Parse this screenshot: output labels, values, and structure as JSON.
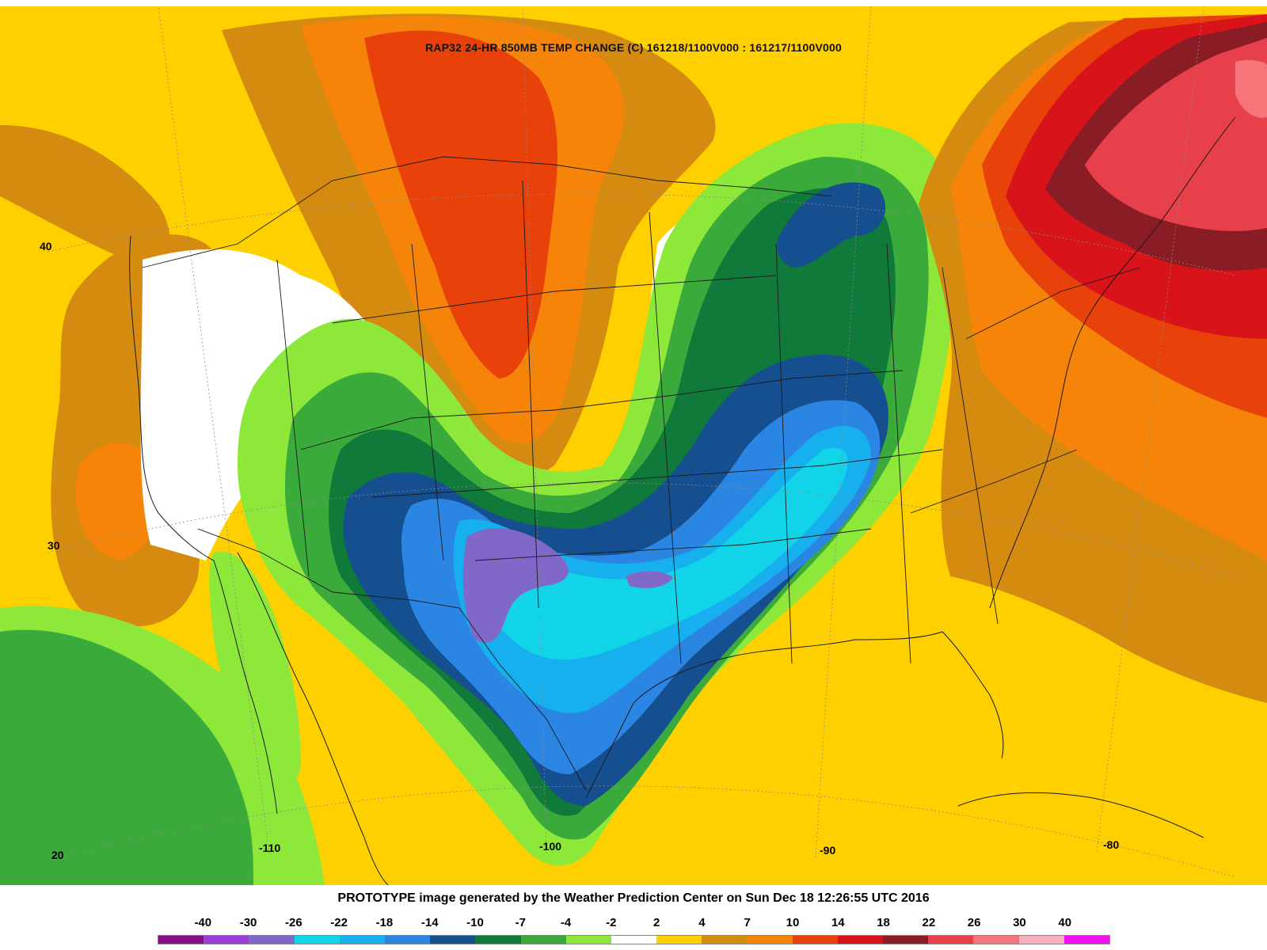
{
  "map": {
    "title": "RAP32 24-HR 850MB TEMP CHANGE (C) 161218/1100V000 : 161217/1100V000",
    "latitude_labels": [
      "40",
      "30",
      "20"
    ],
    "longitude_labels": [
      "-110",
      "-100",
      "-90",
      "-80"
    ],
    "footer": "PROTOTYPE image generated by the Weather Prediction Center on Sun Dec 18 12:26:55 UTC 2016",
    "legend": {
      "labels": [
        "-40",
        "-30",
        "-26",
        "-22",
        "-18",
        "-14",
        "-10",
        "-7",
        "-4",
        "-2",
        "2",
        "4",
        "7",
        "10",
        "14",
        "18",
        "22",
        "26",
        "30",
        "40"
      ],
      "colors": [
        "#8a0d8a",
        "#9a3ddb",
        "#8068c9",
        "#12d4e8",
        "#16b0ee",
        "#2a86e2",
        "#164f90",
        "#0f7a3a",
        "#3aaa3a",
        "#8de83a",
        "#ffffff",
        "#ffd000",
        "#d58a10",
        "#f58408",
        "#e8420a",
        "#d8141a",
        "#8a1c25",
        "#e8404a",
        "#f5757a",
        "#f5b0c0",
        "#f010f0"
      ]
    }
  }
}
